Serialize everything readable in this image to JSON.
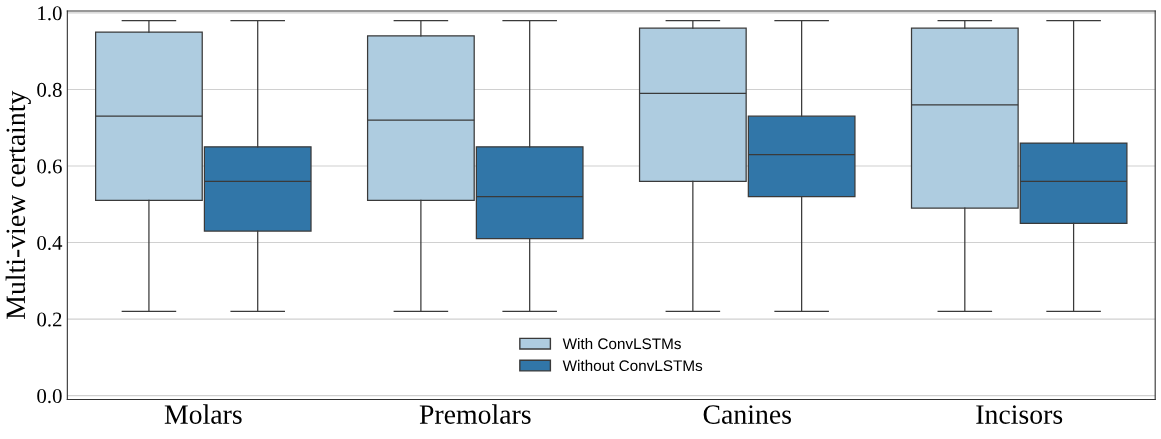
{
  "chart_data": {
    "type": "box",
    "ylabel": "Multi-view certainty",
    "categories": [
      "Molars",
      "Premolars",
      "Canines",
      "Incisors"
    ],
    "ylim": [
      -0.01,
      1.005
    ],
    "yticks": [
      {
        "value": 0.0,
        "label": "0.0"
      },
      {
        "value": 0.2,
        "label": "0.2"
      },
      {
        "value": 0.4,
        "label": "0.4"
      },
      {
        "value": 0.6,
        "label": "0.6"
      },
      {
        "value": 0.8,
        "label": "0.8"
      },
      {
        "value": 1.0,
        "label": "1.0"
      }
    ],
    "grid": "y",
    "legend": "bottom",
    "series": [
      {
        "name": "With ConvLSTMs",
        "color": "#aecce0",
        "boxes": [
          {
            "low": 0.22,
            "q1": 0.51,
            "median": 0.73,
            "q3": 0.95,
            "high": 0.98
          },
          {
            "low": 0.22,
            "q1": 0.51,
            "median": 0.72,
            "q3": 0.94,
            "high": 0.98
          },
          {
            "low": 0.22,
            "q1": 0.56,
            "median": 0.79,
            "q3": 0.96,
            "high": 0.98
          },
          {
            "low": 0.22,
            "q1": 0.49,
            "median": 0.76,
            "q3": 0.96,
            "high": 0.98
          }
        ]
      },
      {
        "name": "Without ConvLSTMs",
        "color": "#3176a8",
        "boxes": [
          {
            "low": 0.22,
            "q1": 0.43,
            "median": 0.56,
            "q3": 0.65,
            "high": 0.98
          },
          {
            "low": 0.22,
            "q1": 0.41,
            "median": 0.52,
            "q3": 0.65,
            "high": 0.98
          },
          {
            "low": 0.22,
            "q1": 0.52,
            "median": 0.63,
            "q3": 0.73,
            "high": 0.98
          },
          {
            "low": 0.22,
            "q1": 0.45,
            "median": 0.56,
            "q3": 0.66,
            "high": 0.98
          }
        ]
      }
    ]
  }
}
